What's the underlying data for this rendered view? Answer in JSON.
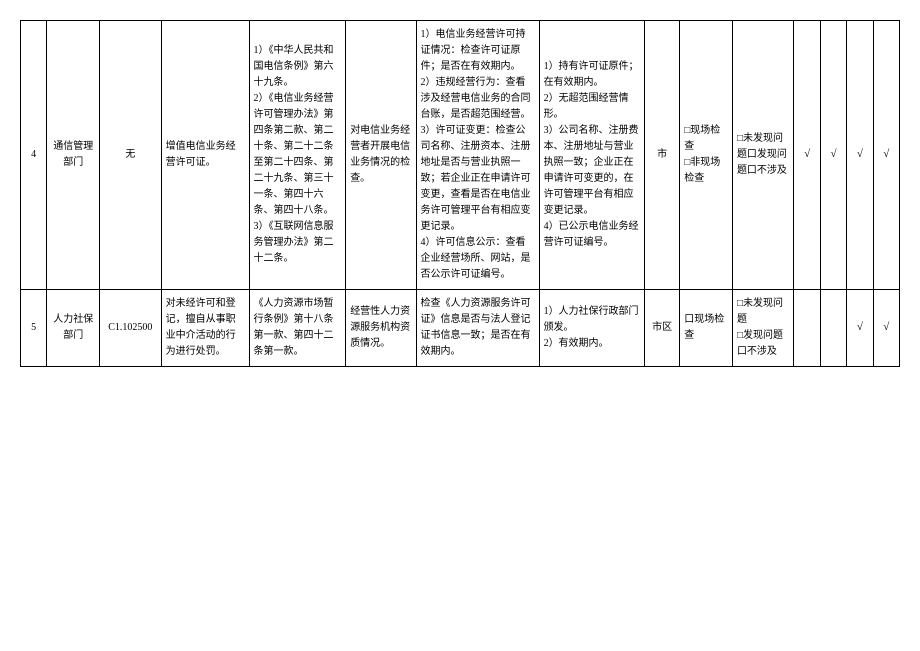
{
  "rows": [
    {
      "num": "4",
      "dept": "通信管理部门",
      "code": "无",
      "license": "增值电信业务经营许可证。",
      "basis": "1）《中华人民共和国电信条例》第六十九条。\n2）《电信业务经营许可管理办法》第四条第二款、第二十条、第二十二条至第二十四条、第二十九条、第三十一条、第四十六条、第四十八条。\n3）《互联网信息服务管理办法》第二十二条。",
      "scope": "对电信业务经营者开展电信业务情况的检查。",
      "content": "1）电信业务经营许可持证情况：检查许可证原件；是否在有效期内。\n2）违规经营行为：查看涉及经营电信业务的合同台账，是否超范围经营。\n3）许可证变更：检查公司名称、注册资本、注册地址是否与营业执照一致；若企业正在申请许可变更，查看是否在电信业务许可管理平台有相应变更记录。\n4）许可信息公示：查看企业经营场所、网站，是否公示许可证编号。",
      "standard": "1）持有许可证原件；在有效期内。\n2）无超范围经营情形。\n3）公司名称、注册费本、注册地址与营业执照一致；企业正在申请许可变更的，在许可管理平台有相应变更记录。\n4）已公示电信业务经营许可证编号。",
      "level": "市",
      "method": "□现场检查\n□非现场检查",
      "result": "□未发现问题口发现问题口不涉及",
      "c1": "√",
      "c2": "√",
      "c3": "√",
      "c4": "√"
    },
    {
      "num": "5",
      "dept": "人力社保部门",
      "code": "C1.102500",
      "license": "对未经许可和登记，擅自从事职业中介活动的行为进行处罚。",
      "basis": "《人力资源市场暂行条例》第十八条第一款、第四十二条第一款。",
      "scope": "经营性人力资源服务机构资质情况。",
      "content": "检查《人力资源服务许可证》信息是否与法人登记证书信息一致；是否在有效期内。",
      "standard": "1）人力社保行政部门颁发。\n2）有效期内。",
      "level": "市区",
      "method": "口现场检查",
      "result": "□未发现问题\n□发现问题口不涉及",
      "c1": "",
      "c2": "",
      "c3": "√",
      "c4": "√"
    }
  ],
  "colWidths": [
    "3%",
    "6%",
    "7%",
    "10%",
    "11%",
    "8%",
    "14%",
    "12%",
    "4%",
    "6%",
    "7%",
    "3%",
    "3%",
    "3%",
    "3%"
  ]
}
